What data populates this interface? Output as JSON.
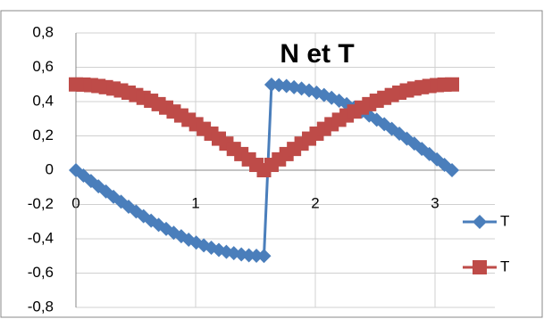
{
  "chart_data": {
    "type": "scatter",
    "title": "N et T",
    "x": [
      0,
      0.063,
      0.126,
      0.188,
      0.251,
      0.314,
      0.377,
      0.44,
      0.503,
      0.565,
      0.628,
      0.691,
      0.754,
      0.817,
      0.88,
      0.942,
      1.005,
      1.068,
      1.131,
      1.194,
      1.257,
      1.319,
      1.382,
      1.445,
      1.508,
      1.571,
      1.634,
      1.696,
      1.759,
      1.822,
      1.885,
      1.948,
      2.011,
      2.073,
      2.136,
      2.199,
      2.262,
      2.325,
      2.388,
      2.45,
      2.513,
      2.576,
      2.639,
      2.702,
      2.765,
      2.827,
      2.89,
      2.953,
      3.016,
      3.079,
      3.142
    ],
    "series": [
      {
        "name": "T",
        "color": "#4a7ebb",
        "marker": "diamond",
        "values": [
          0,
          -0.031,
          -0.063,
          -0.094,
          -0.124,
          -0.155,
          -0.184,
          -0.213,
          -0.241,
          -0.268,
          -0.294,
          -0.319,
          -0.342,
          -0.365,
          -0.385,
          -0.405,
          -0.422,
          -0.438,
          -0.452,
          -0.465,
          -0.476,
          -0.484,
          -0.491,
          -0.496,
          -0.499,
          -0.5,
          0.499,
          0.496,
          0.491,
          0.484,
          0.476,
          0.465,
          0.452,
          0.438,
          0.422,
          0.405,
          0.385,
          0.365,
          0.342,
          0.319,
          0.294,
          0.268,
          0.241,
          0.213,
          0.184,
          0.155,
          0.124,
          0.094,
          0.063,
          0.031,
          0
        ]
      },
      {
        "name": "T",
        "color": "#be4b48",
        "marker": "square",
        "values": [
          0.5,
          0.499,
          0.496,
          0.491,
          0.484,
          0.476,
          0.465,
          0.452,
          0.438,
          0.422,
          0.405,
          0.385,
          0.365,
          0.342,
          0.319,
          0.294,
          0.268,
          0.241,
          0.213,
          0.184,
          0.155,
          0.124,
          0.094,
          0.063,
          0.031,
          0,
          0.031,
          0.063,
          0.094,
          0.124,
          0.155,
          0.184,
          0.213,
          0.241,
          0.268,
          0.294,
          0.319,
          0.342,
          0.365,
          0.385,
          0.405,
          0.422,
          0.438,
          0.452,
          0.465,
          0.476,
          0.484,
          0.491,
          0.496,
          0.499,
          0.5
        ]
      }
    ],
    "xlim": [
      0,
      3.5
    ],
    "xticks": [
      0,
      1,
      2,
      3
    ],
    "ylim": [
      -0.8,
      0.8
    ],
    "yticks": [
      {
        "value": -0.8,
        "label": "-0,8"
      },
      {
        "value": -0.6,
        "label": "-0,6"
      },
      {
        "value": -0.4,
        "label": "-0,4"
      },
      {
        "value": -0.2,
        "label": "-0,2"
      },
      0,
      {
        "value": 0.2,
        "label": "0,2"
      },
      {
        "value": 0.4,
        "label": "0,4"
      },
      {
        "value": 0.6,
        "label": "0,6"
      },
      {
        "value": 0.8,
        "label": "0,8"
      }
    ],
    "grid": true,
    "legend": "right"
  }
}
